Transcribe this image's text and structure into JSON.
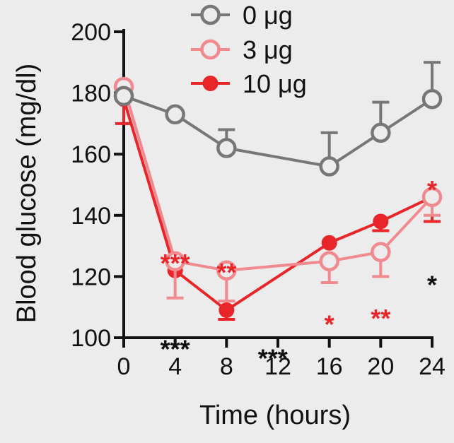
{
  "chart_data": {
    "type": "line",
    "title": "",
    "xlabel": "Time (hours)",
    "ylabel": "Blood glucose (mg/dl)",
    "xlim": [
      0,
      24
    ],
    "ylim": [
      100,
      200
    ],
    "x_ticks": [
      0,
      4,
      8,
      12,
      16,
      20,
      24
    ],
    "y_ticks": [
      100,
      120,
      140,
      160,
      180,
      200
    ],
    "grid": false,
    "legend_placement": "top-center",
    "series": [
      {
        "name": "0 μg",
        "color": "#777777",
        "marker": "open-circle",
        "x": [
          0,
          4,
          8,
          16,
          20,
          24
        ],
        "y": [
          179,
          173,
          162,
          156,
          167,
          178
        ],
        "err_upper": [
          0,
          0,
          6,
          11,
          10,
          12
        ]
      },
      {
        "name": "3 μg",
        "color": "#f08a8e",
        "marker": "open-circle",
        "x": [
          0,
          4,
          8,
          16,
          20,
          24
        ],
        "y": [
          182,
          125,
          122,
          125,
          128,
          146
        ],
        "err_lower": [
          0,
          12,
          10,
          7,
          8,
          6
        ]
      },
      {
        "name": "10 μg",
        "color": "#e8262a",
        "marker": "filled-circle",
        "x": [
          0,
          4,
          8,
          16,
          20,
          24
        ],
        "y": [
          178,
          122,
          109,
          131,
          138,
          146
        ],
        "err_lower": [
          8,
          0,
          3,
          0,
          3,
          8
        ]
      }
    ],
    "annotations": [
      {
        "text": "***",
        "x": 4,
        "y": 127,
        "color": "#e8262a"
      },
      {
        "text": "**",
        "x": 8,
        "y": 124,
        "color": "#e8262a"
      },
      {
        "text": "*",
        "x": 16,
        "y": 107,
        "color": "#e8262a"
      },
      {
        "text": "**",
        "x": 20,
        "y": 109,
        "color": "#e8262a"
      },
      {
        "text": "*",
        "x": 24,
        "y": 151,
        "color": "#e8262a"
      },
      {
        "text": "***",
        "x": 4,
        "y": 99,
        "color": "#111111"
      },
      {
        "text": "***",
        "x": 11.6,
        "y": 96,
        "color": "#111111"
      },
      {
        "text": "*",
        "x": 24,
        "y": 120,
        "color": "#111111"
      }
    ]
  }
}
